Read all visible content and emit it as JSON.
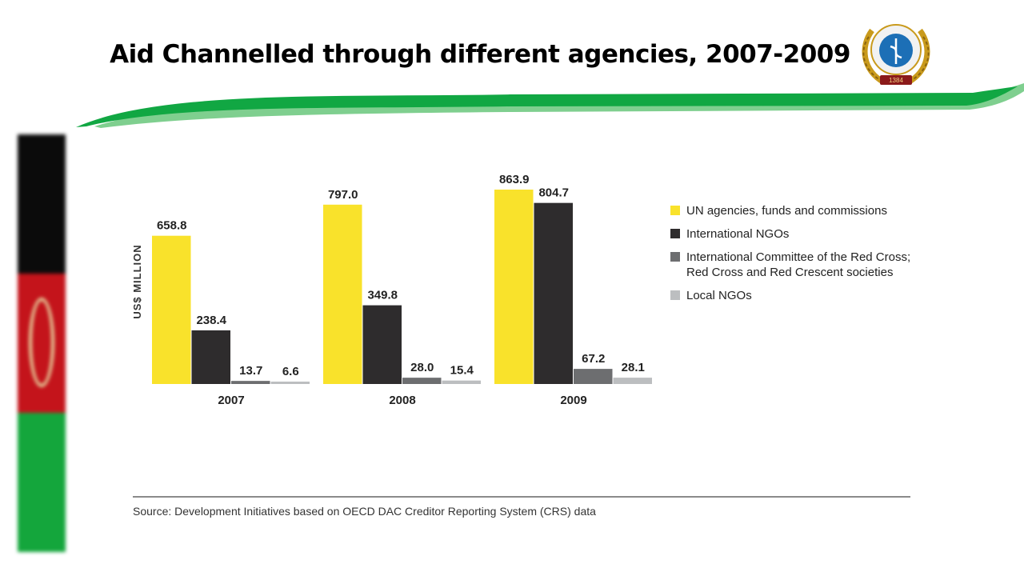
{
  "slide": {
    "title": "Aid Channelled through different agencies, 2007-2009",
    "emblem_text": "1384"
  },
  "colors": {
    "swoosh_dark": "#11a743",
    "swoosh_light": "#7fcf8f",
    "flag_black": "#0b0b0b",
    "flag_red": "#c4141b",
    "flag_green": "#14a63c"
  },
  "chart_data": {
    "type": "bar",
    "title": "",
    "categories": [
      "2007",
      "2008",
      "2009"
    ],
    "ylabel": "US$ MILLION",
    "xlabel": "",
    "ylim": [
      0,
      900
    ],
    "grid": false,
    "legend_position": "right",
    "series": [
      {
        "name": "UN agencies, funds and commissions",
        "color": "#f9e22b",
        "values": [
          658.8,
          797.0,
          863.9
        ],
        "value_labels": [
          "658.8",
          "797.0",
          "863.9"
        ]
      },
      {
        "name": "International NGOs",
        "color": "#2e2c2d",
        "values": [
          238.4,
          349.8,
          804.7
        ],
        "value_labels": [
          "238.4",
          "349.8",
          "804.7"
        ]
      },
      {
        "name": "International Committee of the Red Cross; Red Cross and Red Crescent societies",
        "name_lines": [
          "International Committee of the Red Cross;",
          "Red Cross and Red Crescent societies"
        ],
        "color": "#6d6e70",
        "values": [
          13.7,
          28.0,
          67.2
        ],
        "value_labels": [
          "13.7",
          "28.0",
          "67.2"
        ]
      },
      {
        "name": "Local NGOs",
        "color": "#bcbec0",
        "values": [
          6.6,
          15.4,
          28.1
        ],
        "value_labels": [
          "6.6",
          "15.4",
          "28.1"
        ]
      }
    ],
    "source": "Source: Development Initiatives based on OECD DAC Creditor Reporting System (CRS) data"
  }
}
